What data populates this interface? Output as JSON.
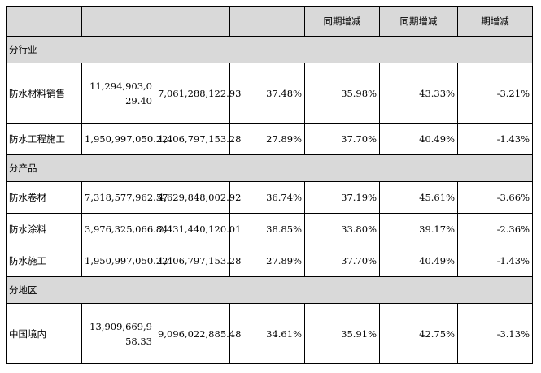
{
  "header": [
    "",
    "",
    "",
    "",
    "同期增减",
    "同期增减",
    "期增减"
  ],
  "sections": [
    {
      "title": "分行业",
      "rows": [
        [
          "防水材料销售",
          "11,294,903,029.40",
          "7,061,288,122.93",
          "37.48%",
          "35.98%",
          "43.33%",
          "-3.21%"
        ],
        [
          "防水工程施工",
          "1,950,997,050.22",
          "1,406,797,153.28",
          "27.89%",
          "37.70%",
          "40.49%",
          "-1.43%"
        ]
      ]
    },
    {
      "title": "分产品",
      "rows": [
        [
          "防水卷材",
          "7,318,577,962.57",
          "4,629,848,002.92",
          "36.74%",
          "37.19%",
          "45.61%",
          "-3.66%"
        ],
        [
          "防水涂料",
          "3,976,325,066.84",
          "2,431,440,120.01",
          "38.85%",
          "33.80%",
          "39.17%",
          "-2.36%"
        ],
        [
          "防水施工",
          "1,950,997,050.22",
          "1,406,797,153.28",
          "27.89%",
          "37.70%",
          "40.49%",
          "-1.43%"
        ]
      ]
    },
    {
      "title": "分地区",
      "rows": [
        [
          "中国境内",
          "13,909,669,958.33",
          "9,096,022,885.48",
          "34.61%",
          "35.91%",
          "42.75%",
          "-3.13%"
        ]
      ]
    }
  ]
}
